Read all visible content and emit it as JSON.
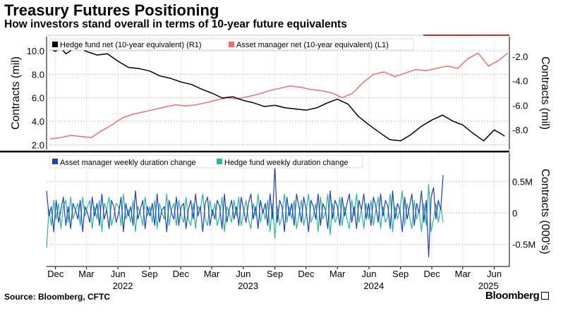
{
  "header": {
    "title": "Treasury Futures Positioning",
    "subtitle": "How investors stand overall in terms of 10-year future equivalents"
  },
  "footer": {
    "source": "Source: Bloomberg, CFTC",
    "brand": "Bloomberg"
  },
  "colors": {
    "hedge_fund_net": "#000000",
    "asset_manager_net": "#f46b6b",
    "asset_manager_weekly": "#1f3fbf",
    "hedge_fund_weekly": "#2ab79a",
    "top_rule": "#e2232a"
  },
  "chart_data": [
    {
      "type": "line",
      "panel": "top",
      "ylabel_left": "Contracts (mil)",
      "ylabel_right": "Contracts (mil)",
      "left_axis": {
        "ticks": [
          2.0,
          4.0,
          6.0,
          8.0,
          10.0
        ],
        "tick_labels": [
          "2.0",
          "4.0",
          "6.0",
          "8.0",
          "10.0"
        ],
        "ylim": [
          1.6,
          11.2
        ]
      },
      "right_axis": {
        "ticks": [
          -8.0,
          -6.0,
          -4.0,
          -2.0
        ],
        "tick_labels": [
          "-8.0",
          "-6.0",
          "-4.0",
          "-2.0"
        ],
        "ylim": [
          -9.6,
          -0.4
        ]
      },
      "grid": true,
      "legend_position": "top-left",
      "series": [
        {
          "name": "Hedge fund net (10-year equivalent) (R1)",
          "axis": "right",
          "points": [
            [
              "2021-11-15",
              -1.4
            ],
            [
              "2021-12-01",
              -1.6
            ],
            [
              "2021-12-15",
              -1.3
            ],
            [
              "2022-01-01",
              -1.8
            ],
            [
              "2022-02-01",
              -1.2
            ],
            [
              "2022-03-01",
              -1.6
            ],
            [
              "2022-04-01",
              -1.9
            ],
            [
              "2022-05-01",
              -1.8
            ],
            [
              "2022-06-01",
              -2.4
            ],
            [
              "2022-07-01",
              -2.9
            ],
            [
              "2022-08-01",
              -3.0
            ],
            [
              "2022-09-01",
              -3.2
            ],
            [
              "2022-10-01",
              -3.6
            ],
            [
              "2022-11-01",
              -3.8
            ],
            [
              "2022-12-01",
              -4.1
            ],
            [
              "2023-01-01",
              -4.3
            ],
            [
              "2023-02-01",
              -4.7
            ],
            [
              "2023-03-01",
              -5.0
            ],
            [
              "2023-04-01",
              -5.4
            ],
            [
              "2023-05-01",
              -5.3
            ],
            [
              "2023-06-01",
              -5.6
            ],
            [
              "2023-07-01",
              -5.8
            ],
            [
              "2023-08-01",
              -6.1
            ],
            [
              "2023-09-01",
              -6.0
            ],
            [
              "2023-10-01",
              -6.2
            ],
            [
              "2023-11-01",
              -6.3
            ],
            [
              "2023-12-01",
              -6.4
            ],
            [
              "2024-01-01",
              -6.2
            ],
            [
              "2024-02-01",
              -5.8
            ],
            [
              "2024-03-01",
              -5.5
            ],
            [
              "2024-04-01",
              -5.9
            ],
            [
              "2024-05-01",
              -6.9
            ],
            [
              "2024-06-01",
              -7.6
            ],
            [
              "2024-07-01",
              -8.2
            ],
            [
              "2024-08-01",
              -8.8
            ],
            [
              "2024-09-01",
              -8.9
            ],
            [
              "2024-10-01",
              -8.4
            ],
            [
              "2024-11-01",
              -7.7
            ],
            [
              "2024-12-01",
              -7.2
            ],
            [
              "2025-01-01",
              -6.8
            ],
            [
              "2025-02-01",
              -7.3
            ],
            [
              "2025-03-01",
              -7.6
            ],
            [
              "2025-04-01",
              -8.3
            ],
            [
              "2025-05-01",
              -8.9
            ],
            [
              "2025-06-01",
              -8.0
            ],
            [
              "2025-07-01",
              -8.5
            ]
          ]
        },
        {
          "name": "Asset manager net (10-year equivalent) (L1)",
          "axis": "left",
          "points": [
            [
              "2021-11-15",
              2.5
            ],
            [
              "2021-12-15",
              2.6
            ],
            [
              "2022-01-15",
              2.8
            ],
            [
              "2022-02-15",
              2.7
            ],
            [
              "2022-03-15",
              2.6
            ],
            [
              "2022-04-15",
              3.2
            ],
            [
              "2022-05-15",
              3.7
            ],
            [
              "2022-06-15",
              4.3
            ],
            [
              "2022-07-15",
              4.6
            ],
            [
              "2022-08-15",
              4.8
            ],
            [
              "2022-09-15",
              5.0
            ],
            [
              "2022-10-15",
              5.2
            ],
            [
              "2022-11-15",
              5.4
            ],
            [
              "2022-12-15",
              5.3
            ],
            [
              "2023-01-15",
              5.4
            ],
            [
              "2023-02-15",
              5.6
            ],
            [
              "2023-03-15",
              5.8
            ],
            [
              "2023-04-15",
              6.0
            ],
            [
              "2023-05-15",
              5.9
            ],
            [
              "2023-06-15",
              6.1
            ],
            [
              "2023-07-15",
              6.3
            ],
            [
              "2023-08-15",
              6.6
            ],
            [
              "2023-09-15",
              6.8
            ],
            [
              "2023-10-15",
              7.0
            ],
            [
              "2023-11-15",
              6.9
            ],
            [
              "2023-12-15",
              6.7
            ],
            [
              "2024-01-15",
              6.6
            ],
            [
              "2024-02-15",
              6.4
            ],
            [
              "2024-03-15",
              6.0
            ],
            [
              "2024-04-15",
              6.4
            ],
            [
              "2024-05-15",
              7.3
            ],
            [
              "2024-06-15",
              8.0
            ],
            [
              "2024-07-15",
              8.2
            ],
            [
              "2024-08-15",
              7.8
            ],
            [
              "2024-09-15",
              8.1
            ],
            [
              "2024-10-15",
              8.4
            ],
            [
              "2024-11-15",
              8.3
            ],
            [
              "2024-12-15",
              8.5
            ],
            [
              "2025-01-15",
              8.7
            ],
            [
              "2025-02-15",
              8.5
            ],
            [
              "2025-03-15",
              9.3
            ],
            [
              "2025-04-15",
              9.8
            ],
            [
              "2025-05-15",
              8.7
            ],
            [
              "2025-06-15",
              9.2
            ],
            [
              "2025-07-10",
              9.8
            ]
          ]
        }
      ]
    },
    {
      "type": "line",
      "panel": "bottom",
      "ylabel_right": "Contracts (000's)",
      "right_axis": {
        "ticks": [
          -0.5,
          0,
          0.5
        ],
        "tick_labels": [
          "-0.5M",
          "0",
          "0.5M"
        ],
        "ylim": [
          -0.85,
          0.95
        ]
      },
      "grid": true,
      "legend_position": "top-left",
      "series": [
        {
          "name": "Asset manager weekly duration change",
          "axis": "right",
          "start": "2021-11-05",
          "interval_days": 7,
          "values": [
            0.35,
            -0.05,
            0.1,
            -0.3,
            0.2,
            -0.15,
            0.05,
            0.25,
            -0.2,
            0.1,
            -0.25,
            0.15,
            0.05,
            -0.1,
            0.2,
            -0.3,
            0.1,
            0.0,
            -0.15,
            0.25,
            -0.05,
            0.15,
            -0.2,
            0.3,
            -0.1,
            0.05,
            -0.25,
            0.2,
            0.1,
            -0.15,
            0.0,
            0.25,
            -0.3,
            0.15,
            -0.05,
            0.1,
            -0.2,
            0.35,
            -0.1,
            0.05,
            0.2,
            -0.25,
            0.1,
            -0.05,
            0.15,
            -0.2,
            0.3,
            -0.15,
            0.05,
            0.1,
            -0.3,
            0.2,
            0.0,
            -0.1,
            0.25,
            -0.2,
            0.1,
            0.15,
            -0.25,
            0.05,
            0.2,
            -0.1,
            0.3,
            -0.05,
            0.1,
            -0.3,
            0.15,
            0.25,
            -0.2,
            0.05,
            -0.1,
            0.2,
            0.1,
            -0.25,
            0.3,
            -0.15,
            0.05,
            0.2,
            -0.1,
            0.1,
            -0.2,
            0.25,
            0.05,
            -0.15,
            0.15,
            0.3,
            -0.1,
            0.1,
            -0.25,
            0.2,
            0.0,
            0.15,
            -0.2,
            0.3,
            -0.1,
            0.75,
            -0.15,
            0.2,
            0.1,
            -0.3,
            0.25,
            -0.05,
            0.15,
            -0.2,
            0.3,
            0.1,
            -0.15,
            0.25,
            0.05,
            -0.3,
            0.2,
            0.1,
            -0.1,
            0.3,
            -0.2,
            0.15,
            0.05,
            -0.25,
            0.35,
            -0.1,
            0.2,
            0.1,
            -0.2,
            0.25,
            -0.05,
            0.15,
            0.3,
            -0.15,
            0.1,
            -0.25,
            0.2,
            0.05,
            0.3,
            -0.1,
            0.15,
            -0.2,
            0.25,
            0.1,
            -0.15,
            0.3,
            -0.05,
            0.2,
            0.1,
            -0.25,
            0.35,
            -0.1,
            0.15,
            0.05,
            -0.3,
            0.25,
            -0.1,
            0.1,
            0.3,
            -0.2,
            0.15,
            0.0,
            0.35,
            -0.15,
            0.2,
            -0.7,
            0.25,
            0.4,
            -0.1,
            0.2,
            0.05,
            0.6
          ]
        },
        {
          "name": "Hedge fund weekly duration change",
          "axis": "right",
          "start": "2021-11-05",
          "interval_days": 7,
          "values": [
            -0.55,
            0.05,
            -0.2,
            0.2,
            -0.1,
            0.15,
            -0.25,
            0.1,
            0.2,
            -0.15,
            0.25,
            -0.1,
            0.05,
            0.15,
            -0.2,
            0.25,
            -0.05,
            0.1,
            0.2,
            -0.25,
            0.1,
            -0.1,
            0.2,
            -0.3,
            0.15,
            0.05,
            0.25,
            -0.2,
            -0.05,
            0.15,
            0.1,
            -0.2,
            0.3,
            -0.1,
            0.05,
            -0.15,
            0.2,
            -0.3,
            0.1,
            0.0,
            -0.2,
            0.25,
            -0.05,
            0.1,
            -0.15,
            0.2,
            -0.25,
            0.15,
            0.0,
            -0.1,
            0.3,
            -0.2,
            0.05,
            0.15,
            -0.2,
            0.2,
            -0.05,
            -0.15,
            0.25,
            -0.1,
            -0.2,
            0.15,
            -0.25,
            0.1,
            0.05,
            0.3,
            -0.1,
            -0.2,
            0.2,
            -0.05,
            0.15,
            -0.2,
            -0.05,
            0.25,
            -0.3,
            0.1,
            0.0,
            -0.15,
            0.2,
            -0.05,
            0.25,
            -0.2,
            0.0,
            0.2,
            -0.1,
            -0.25,
            0.15,
            -0.05,
            0.3,
            -0.15,
            0.05,
            -0.1,
            0.2,
            -0.3,
            0.15,
            -0.4,
            0.1,
            -0.2,
            -0.05,
            0.3,
            -0.15,
            0.1,
            -0.1,
            0.2,
            -0.25,
            -0.05,
            0.2,
            -0.2,
            0.0,
            0.3,
            -0.15,
            -0.05,
            0.15,
            -0.3,
            0.25,
            -0.1,
            0.0,
            0.3,
            -0.35,
            0.15,
            -0.15,
            -0.05,
            0.25,
            -0.2,
            0.1,
            -0.1,
            -0.25,
            0.2,
            -0.05,
            0.3,
            -0.15,
            0.05,
            -0.25,
            0.15,
            -0.1,
            0.2,
            -0.2,
            0.05,
            0.25,
            -0.25,
            0.1,
            -0.15,
            -0.05,
            0.3,
            -0.3,
            0.1,
            -0.1,
            0.05,
            0.35,
            -0.2,
            0.15,
            -0.05,
            -0.25,
            0.2,
            -0.1,
            0.05,
            -0.3,
            0.15,
            -0.2,
            0.45,
            -0.3,
            -0.1,
            0.15,
            -0.15,
            0.1,
            -0.15
          ]
        }
      ]
    }
  ],
  "x_axis": {
    "ticks": [
      {
        "date": "2021-12-01",
        "label": "Dec"
      },
      {
        "date": "2022-03-01",
        "label": "Mar"
      },
      {
        "date": "2022-06-01",
        "label": "Jun"
      },
      {
        "date": "2022-09-01",
        "label": "Sep"
      },
      {
        "date": "2022-12-01",
        "label": "Dec"
      },
      {
        "date": "2023-03-01",
        "label": "Mar"
      },
      {
        "date": "2023-06-01",
        "label": "Jun"
      },
      {
        "date": "2023-09-01",
        "label": "Sep"
      },
      {
        "date": "2023-12-01",
        "label": "Dec"
      },
      {
        "date": "2024-03-01",
        "label": "Mar"
      },
      {
        "date": "2024-06-01",
        "label": "Jun"
      },
      {
        "date": "2024-09-01",
        "label": "Sep"
      },
      {
        "date": "2024-12-01",
        "label": "Dec"
      },
      {
        "date": "2025-03-01",
        "label": "Mar"
      },
      {
        "date": "2025-06-01",
        "label": "Jun"
      }
    ],
    "years": [
      {
        "date": "2022-06-15",
        "label": "2022"
      },
      {
        "date": "2023-06-15",
        "label": "2023"
      },
      {
        "date": "2024-06-15",
        "label": "2024"
      },
      {
        "date": "2025-05-15",
        "label": "2025"
      }
    ],
    "range": [
      "2021-11-05",
      "2025-07-15"
    ]
  }
}
